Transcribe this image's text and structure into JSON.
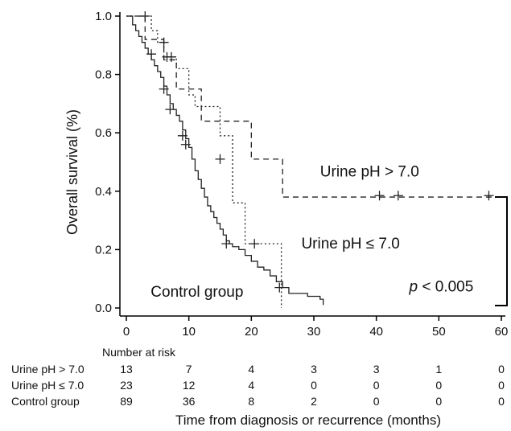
{
  "chart_data": {
    "type": "line",
    "subtype": "kaplan-meier",
    "title": "",
    "xlabel": "Time from diagnosis or recurrence (months)",
    "ylabel": "Overall survival (%)",
    "xlim": [
      0,
      60
    ],
    "ylim": [
      0,
      1
    ],
    "xticks": [
      "0",
      "10",
      "20",
      "30",
      "40",
      "50",
      "60"
    ],
    "yticks": [
      "0.0",
      "0.2",
      "0.4",
      "0.6",
      "0.8",
      "1.0"
    ],
    "legend": "none",
    "grid": false,
    "series": [
      {
        "name": "Urine pH > 7.0",
        "style": "dashed",
        "steps": [
          [
            0,
            1.0
          ],
          [
            3,
            1.0
          ],
          [
            3,
            0.92
          ],
          [
            6,
            0.92
          ],
          [
            6,
            0.85
          ],
          [
            8,
            0.85
          ],
          [
            8,
            0.75
          ],
          [
            12,
            0.75
          ],
          [
            12,
            0.64
          ],
          [
            20,
            0.64
          ],
          [
            20,
            0.51
          ],
          [
            25,
            0.51
          ],
          [
            25,
            0.38
          ],
          [
            60,
            0.38
          ]
        ],
        "censored": [
          [
            3,
            1.0
          ],
          [
            6,
            0.91
          ],
          [
            7.2,
            0.86
          ],
          [
            40.5,
            0.385
          ],
          [
            43.5,
            0.385
          ],
          [
            58,
            0.385
          ]
        ]
      },
      {
        "name": "Urine pH ≤ 7.0",
        "style": "dotted",
        "steps": [
          [
            0,
            1.0
          ],
          [
            4,
            1.0
          ],
          [
            4,
            0.95
          ],
          [
            5,
            0.95
          ],
          [
            5,
            0.91
          ],
          [
            6,
            0.91
          ],
          [
            6,
            0.86
          ],
          [
            8,
            0.86
          ],
          [
            8,
            0.82
          ],
          [
            10,
            0.82
          ],
          [
            10,
            0.73
          ],
          [
            11,
            0.73
          ],
          [
            11,
            0.69
          ],
          [
            15,
            0.69
          ],
          [
            15,
            0.59
          ],
          [
            17,
            0.59
          ],
          [
            17,
            0.36
          ],
          [
            19,
            0.36
          ],
          [
            19,
            0.22
          ],
          [
            24.8,
            0.22
          ],
          [
            24.8,
            0.0
          ]
        ],
        "censored": [
          [
            6.5,
            0.86
          ],
          [
            15,
            0.51
          ],
          [
            20.5,
            0.22
          ]
        ]
      },
      {
        "name": "Control group",
        "style": "solid",
        "steps": [
          [
            0,
            1.0
          ],
          [
            1,
            0.97
          ],
          [
            1.5,
            0.95
          ],
          [
            2,
            0.93
          ],
          [
            2.5,
            0.91
          ],
          [
            3,
            0.89
          ],
          [
            3.5,
            0.87
          ],
          [
            4,
            0.85
          ],
          [
            4.5,
            0.83
          ],
          [
            5,
            0.81
          ],
          [
            5.5,
            0.79
          ],
          [
            6,
            0.76
          ],
          [
            6.5,
            0.73
          ],
          [
            7,
            0.7
          ],
          [
            7.5,
            0.68
          ],
          [
            8,
            0.66
          ],
          [
            8.5,
            0.64
          ],
          [
            9,
            0.61
          ],
          [
            9.5,
            0.58
          ],
          [
            10,
            0.55
          ],
          [
            10.5,
            0.51
          ],
          [
            11,
            0.47
          ],
          [
            11.5,
            0.44
          ],
          [
            12,
            0.41
          ],
          [
            12.5,
            0.38
          ],
          [
            13,
            0.35
          ],
          [
            13.5,
            0.33
          ],
          [
            14,
            0.31
          ],
          [
            14.5,
            0.29
          ],
          [
            15,
            0.27
          ],
          [
            15.5,
            0.25
          ],
          [
            16,
            0.23
          ],
          [
            16.5,
            0.22
          ],
          [
            17,
            0.21
          ],
          [
            18,
            0.2
          ],
          [
            19,
            0.18
          ],
          [
            20,
            0.16
          ],
          [
            21,
            0.14
          ],
          [
            22,
            0.13
          ],
          [
            23,
            0.11
          ],
          [
            24,
            0.09
          ],
          [
            25,
            0.07
          ],
          [
            26,
            0.05
          ],
          [
            29,
            0.04
          ],
          [
            31,
            0.03
          ],
          [
            31.5,
            0.01
          ]
        ],
        "censored": [
          [
            4,
            0.87
          ],
          [
            6,
            0.75
          ],
          [
            7,
            0.68
          ],
          [
            9,
            0.59
          ],
          [
            9.5,
            0.56
          ],
          [
            16,
            0.22
          ],
          [
            24.5,
            0.07
          ]
        ]
      }
    ],
    "annotations": [
      {
        "text": "Urine pH > 7.0",
        "x": 31,
        "y": 0.45
      },
      {
        "text": "Urine pH ≤ 7.0",
        "x": 28,
        "y": 0.22
      },
      {
        "text": "Control group",
        "x": 3,
        "y": 0.05
      },
      {
        "text": "< 0.005",
        "x": 45,
        "y": 0.07
      }
    ],
    "p_value_symbol": "p",
    "bracket_between": [
      "Urine pH > 7.0",
      "Control group"
    ]
  },
  "risk_table": {
    "title": "Number at risk",
    "rows": [
      {
        "label": "Urine pH > 7.0",
        "values": [
          "13",
          "7",
          "4",
          "3",
          "3",
          "1",
          "0"
        ]
      },
      {
        "label": "Urine pH ≤ 7.0",
        "values": [
          "23",
          "12",
          "4",
          "0",
          "0",
          "0",
          "0"
        ]
      },
      {
        "label": "Control group",
        "values": [
          "89",
          "36",
          "8",
          "2",
          "0",
          "0",
          "0"
        ]
      }
    ]
  }
}
